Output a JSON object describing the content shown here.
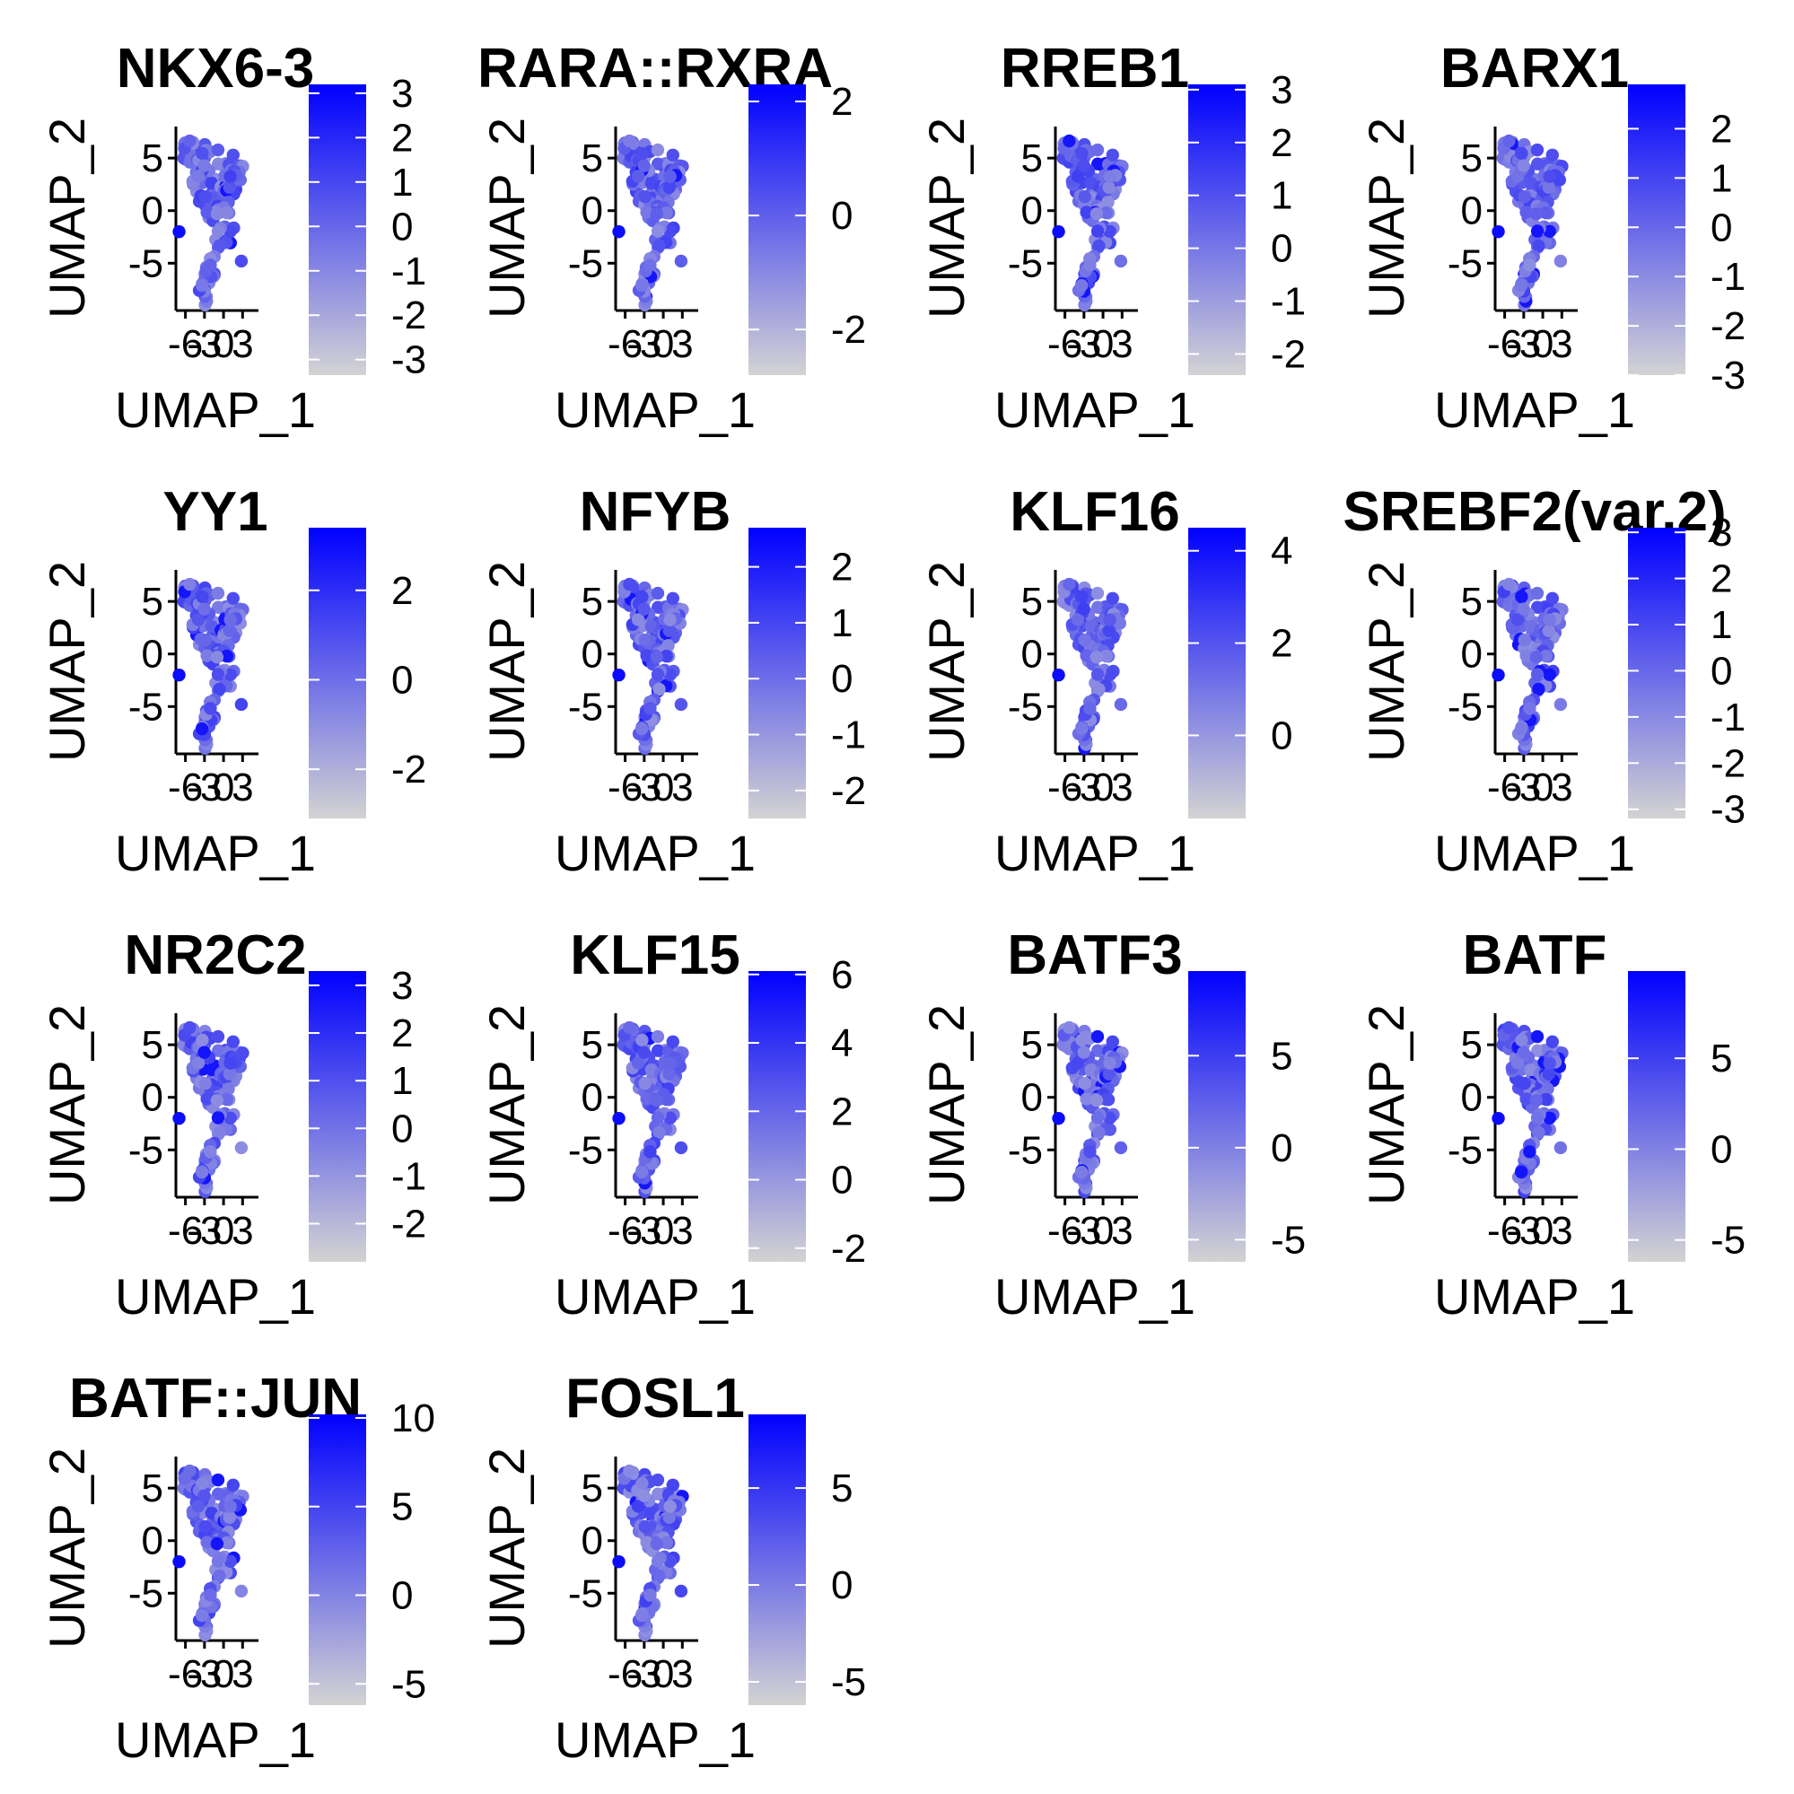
{
  "colors": {
    "low": "#d3d3d3",
    "high": "#0000ff",
    "axis": "#000000"
  },
  "chart_data": [
    {
      "type": "scatter",
      "title": "NKX6-3",
      "xlabel": "UMAP_1",
      "ylabel": "UMAP_2",
      "xticks": [
        "-6",
        "-3",
        "0",
        "3"
      ],
      "yticks": [
        "5",
        "0",
        "-5"
      ],
      "xlim": [
        -7.5,
        5.5
      ],
      "ylim": [
        -9.5,
        8
      ],
      "colorbar": {
        "ticks": [
          "3",
          "2",
          "1",
          "0",
          "-1",
          "-2",
          "-3"
        ],
        "values": [
          3,
          2,
          1,
          0,
          -1,
          -2,
          -3
        ],
        "range": [
          -3.35,
          3.2
        ]
      }
    },
    {
      "type": "scatter",
      "title": "RARA::RXRA",
      "xlabel": "UMAP_1",
      "ylabel": "UMAP_2",
      "xticks": [
        "-6",
        "-3",
        "0",
        "3"
      ],
      "yticks": [
        "5",
        "0",
        "-5"
      ],
      "xlim": [
        -7.5,
        5.5
      ],
      "ylim": [
        -9.5,
        8
      ],
      "colorbar": {
        "ticks": [
          "2",
          "0",
          "-2"
        ],
        "values": [
          2,
          0,
          -2
        ],
        "range": [
          -2.8,
          2.3
        ]
      }
    },
    {
      "type": "scatter",
      "title": "RREB1",
      "xlabel": "UMAP_1",
      "ylabel": "UMAP_2",
      "xticks": [
        "-6",
        "-3",
        "0",
        "3"
      ],
      "yticks": [
        "5",
        "0",
        "-5"
      ],
      "xlim": [
        -7.5,
        5.5
      ],
      "ylim": [
        -9.5,
        8
      ],
      "colorbar": {
        "ticks": [
          "3",
          "2",
          "1",
          "0",
          "-1",
          "-2"
        ],
        "values": [
          3,
          2,
          1,
          0,
          -1,
          -2
        ],
        "range": [
          -2.4,
          3.1
        ]
      }
    },
    {
      "type": "scatter",
      "title": "BARX1",
      "xlabel": "UMAP_1",
      "ylabel": "UMAP_2",
      "xticks": [
        "-6",
        "-3",
        "0",
        "3"
      ],
      "yticks": [
        "5",
        "0",
        "-5"
      ],
      "xlim": [
        -7.5,
        5.5
      ],
      "ylim": [
        -9.5,
        8
      ],
      "colorbar": {
        "ticks": [
          "2",
          "1",
          "0",
          "-1",
          "-2",
          "-3"
        ],
        "values": [
          2,
          1,
          0,
          -1,
          -2,
          -3
        ],
        "range": [
          -3,
          2.9
        ]
      }
    },
    {
      "type": "scatter",
      "title": "YY1",
      "xlabel": "UMAP_1",
      "ylabel": "UMAP_2",
      "xticks": [
        "-6",
        "-3",
        "0",
        "3"
      ],
      "yticks": [
        "5",
        "0",
        "-5"
      ],
      "xlim": [
        -7.5,
        5.5
      ],
      "ylim": [
        -9.5,
        8
      ],
      "colorbar": {
        "ticks": [
          "2",
          "0",
          "-2"
        ],
        "values": [
          2,
          0,
          -2
        ],
        "range": [
          -3.1,
          3.4
        ]
      }
    },
    {
      "type": "scatter",
      "title": "NFYB",
      "xlabel": "UMAP_1",
      "ylabel": "UMAP_2",
      "xticks": [
        "-6",
        "-3",
        "0",
        "3"
      ],
      "yticks": [
        "5",
        "0",
        "-5"
      ],
      "xlim": [
        -7.5,
        5.5
      ],
      "ylim": [
        -9.5,
        8
      ],
      "colorbar": {
        "ticks": [
          "2",
          "1",
          "0",
          "-1",
          "-2"
        ],
        "values": [
          2,
          1,
          0,
          -1,
          -2
        ],
        "range": [
          -2.5,
          2.7
        ]
      }
    },
    {
      "type": "scatter",
      "title": "KLF16",
      "xlabel": "UMAP_1",
      "ylabel": "UMAP_2",
      "xticks": [
        "-6",
        "-3",
        "0",
        "3"
      ],
      "yticks": [
        "5",
        "0",
        "-5"
      ],
      "xlim": [
        -7.5,
        5.5
      ],
      "ylim": [
        -9.5,
        8
      ],
      "colorbar": {
        "ticks": [
          "4",
          "2",
          "0"
        ],
        "values": [
          4,
          2,
          0
        ],
        "range": [
          -1.8,
          4.5
        ]
      }
    },
    {
      "type": "scatter",
      "title": "SREBF2(var.2)",
      "xlabel": "UMAP_1",
      "ylabel": "UMAP_2",
      "xticks": [
        "-6",
        "-3",
        "0",
        "3"
      ],
      "yticks": [
        "5",
        "0",
        "-5"
      ],
      "xlim": [
        -7.5,
        5.5
      ],
      "ylim": [
        -9.5,
        8
      ],
      "colorbar": {
        "ticks": [
          "3",
          "2",
          "1",
          "0",
          "-1",
          "-2",
          "-3"
        ],
        "values": [
          3,
          2,
          1,
          0,
          -1,
          -2,
          -3
        ],
        "range": [
          -3.2,
          3.1
        ]
      }
    },
    {
      "type": "scatter",
      "title": "NR2C2",
      "xlabel": "UMAP_1",
      "ylabel": "UMAP_2",
      "xticks": [
        "-6",
        "-3",
        "0",
        "3"
      ],
      "yticks": [
        "5",
        "0",
        "-5"
      ],
      "xlim": [
        -7.5,
        5.5
      ],
      "ylim": [
        -9.5,
        8
      ],
      "colorbar": {
        "ticks": [
          "3",
          "2",
          "1",
          "0",
          "-1",
          "-2"
        ],
        "values": [
          3,
          2,
          1,
          0,
          -1,
          -2
        ],
        "range": [
          -2.8,
          3.3
        ]
      }
    },
    {
      "type": "scatter",
      "title": "KLF15",
      "xlabel": "UMAP_1",
      "ylabel": "UMAP_2",
      "xticks": [
        "-6",
        "-3",
        "0",
        "3"
      ],
      "yticks": [
        "5",
        "0",
        "-5"
      ],
      "xlim": [
        -7.5,
        5.5
      ],
      "ylim": [
        -9.5,
        8
      ],
      "colorbar": {
        "ticks": [
          "6",
          "4",
          "2",
          "0",
          "-2"
        ],
        "values": [
          6,
          4,
          2,
          0,
          -2
        ],
        "range": [
          -2.4,
          6.1
        ]
      }
    },
    {
      "type": "scatter",
      "title": "BATF3",
      "xlabel": "UMAP_1",
      "ylabel": "UMAP_2",
      "xticks": [
        "-6",
        "-3",
        "0",
        "3"
      ],
      "yticks": [
        "5",
        "0",
        "-5"
      ],
      "xlim": [
        -7.5,
        5.5
      ],
      "ylim": [
        -9.5,
        8
      ],
      "colorbar": {
        "ticks": [
          "5",
          "0",
          "-5"
        ],
        "values": [
          5,
          0,
          -5
        ],
        "range": [
          -6.2,
          9.6
        ]
      }
    },
    {
      "type": "scatter",
      "title": "BATF",
      "xlabel": "UMAP_1",
      "ylabel": "UMAP_2",
      "xticks": [
        "-6",
        "-3",
        "0",
        "3"
      ],
      "yticks": [
        "5",
        "0",
        "-5"
      ],
      "xlim": [
        -7.5,
        5.5
      ],
      "ylim": [
        -9.5,
        8
      ],
      "colorbar": {
        "ticks": [
          "5",
          "0",
          "-5"
        ],
        "values": [
          5,
          0,
          -5
        ],
        "range": [
          -6.2,
          9.8
        ]
      }
    },
    {
      "type": "scatter",
      "title": "BATF::JUN",
      "xlabel": "UMAP_1",
      "ylabel": "UMAP_2",
      "xticks": [
        "-6",
        "-3",
        "0",
        "3"
      ],
      "yticks": [
        "5",
        "0",
        "-5"
      ],
      "xlim": [
        -7.5,
        5.5
      ],
      "ylim": [
        -9.5,
        8
      ],
      "colorbar": {
        "ticks": [
          "10",
          "5",
          "0",
          "-5"
        ],
        "values": [
          10,
          5,
          0,
          -5
        ],
        "range": [
          -6.2,
          10.2
        ]
      }
    },
    {
      "type": "scatter",
      "title": "FOSL1",
      "xlabel": "UMAP_1",
      "ylabel": "UMAP_2",
      "xticks": [
        "-6",
        "-3",
        "0",
        "3"
      ],
      "yticks": [
        "5",
        "0",
        "-5"
      ],
      "xlim": [
        -7.5,
        5.5
      ],
      "ylim": [
        -9.5,
        8
      ],
      "colorbar": {
        "ticks": [
          "5",
          "0",
          "-5"
        ],
        "values": [
          5,
          0,
          -5
        ],
        "range": [
          -6.2,
          8.8
        ]
      }
    }
  ]
}
